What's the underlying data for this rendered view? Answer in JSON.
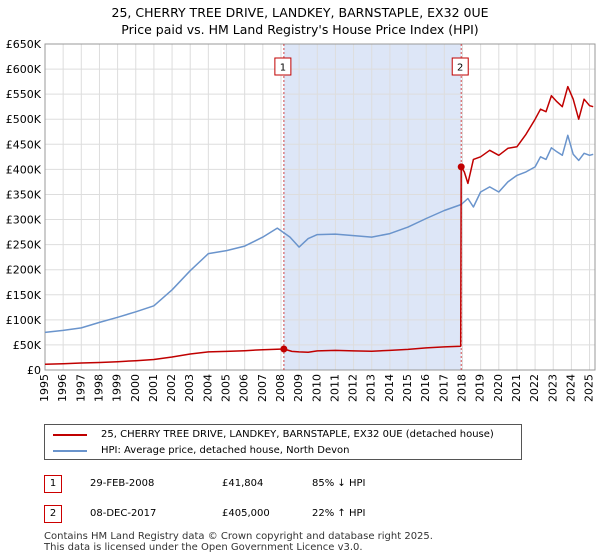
{
  "title_line1": "25, CHERRY TREE DRIVE, LANDKEY, BARNSTAPLE, EX32 0UE",
  "title_line2": "Price paid vs. HM Land Registry's House Price Index (HPI)",
  "colors": {
    "property": "#c00000",
    "hpi": "#6a94cc",
    "shade": "#dde6f7",
    "grid": "#dddddd"
  },
  "chart_data": {
    "type": "line",
    "title": "25, CHERRY TREE DRIVE, LANDKEY, BARNSTAPLE, EX32 0UE — Price paid vs. HM Land Registry's House Price Index (HPI)",
    "xlabel": "",
    "ylabel": "",
    "xlim": [
      1995,
      2025.3
    ],
    "ylim": [
      0,
      650000
    ],
    "y_ticks": [
      0,
      50000,
      100000,
      150000,
      200000,
      250000,
      300000,
      350000,
      400000,
      450000,
      500000,
      550000,
      600000,
      650000
    ],
    "y_tick_labels": [
      "£0",
      "£50K",
      "£100K",
      "£150K",
      "£200K",
      "£250K",
      "£300K",
      "£350K",
      "£400K",
      "£450K",
      "£500K",
      "£550K",
      "£600K",
      "£650K"
    ],
    "x_ticks": [
      1995,
      1996,
      1997,
      1998,
      1999,
      2000,
      2001,
      2002,
      2003,
      2004,
      2005,
      2006,
      2007,
      2008,
      2009,
      2010,
      2011,
      2012,
      2013,
      2014,
      2015,
      2016,
      2017,
      2018,
      2019,
      2020,
      2021,
      2022,
      2023,
      2024,
      2025
    ],
    "x_tick_labels": [
      "1995",
      "1996",
      "1997",
      "1998",
      "1999",
      "2000",
      "2001",
      "2002",
      "2003",
      "2004",
      "2005",
      "2006",
      "2007",
      "2008",
      "2009",
      "2010",
      "2011",
      "2012",
      "2013",
      "2014",
      "2015",
      "2016",
      "2017",
      "2018",
      "2019",
      "2020",
      "2021",
      "2022",
      "2023",
      "2024",
      "2025"
    ],
    "grid": true,
    "shaded_range": [
      2008.16,
      2017.93
    ],
    "series": [
      {
        "name": "25, CHERRY TREE DRIVE, LANDKEY, BARNSTAPLE, EX32 0UE (detached house)",
        "x": [
          1995,
          1996,
          1997,
          1998,
          1999,
          2000,
          2001,
          2002,
          2003,
          2004,
          2005,
          2006,
          2007,
          2008.16,
          2008.6,
          2009,
          2009.5,
          2010,
          2011,
          2012,
          2013,
          2014,
          2015,
          2016,
          2017,
          2017.9,
          2017.93,
          2018.1,
          2018.3,
          2018.6,
          2019,
          2019.5,
          2020,
          2020.5,
          2021,
          2021.5,
          2022,
          2022.3,
          2022.6,
          2022.9,
          2023.2,
          2023.5,
          2023.8,
          2024.1,
          2024.4,
          2024.7,
          2025,
          2025.2
        ],
        "values": [
          11500,
          12500,
          14000,
          15000,
          16500,
          18500,
          21000,
          26000,
          32000,
          36000,
          37000,
          38500,
          40500,
          41804,
          37000,
          36000,
          35500,
          38000,
          39000,
          38000,
          37500,
          39000,
          41000,
          44000,
          46000,
          47500,
          405000,
          395000,
          372000,
          420000,
          425000,
          438000,
          428000,
          442000,
          445000,
          470000,
          500000,
          520000,
          515000,
          547000,
          535000,
          525000,
          565000,
          540000,
          500000,
          540000,
          527000,
          525000
        ]
      },
      {
        "name": "HPI: Average price, detached house, North Devon",
        "x": [
          1995,
          1996,
          1997,
          1998,
          1999,
          2000,
          2001,
          2002,
          2003,
          2004,
          2005,
          2006,
          2007,
          2007.8,
          2008.5,
          2009,
          2009.5,
          2010,
          2011,
          2012,
          2013,
          2014,
          2015,
          2016,
          2017,
          2017.93,
          2018.3,
          2018.6,
          2019,
          2019.5,
          2020,
          2020.5,
          2021,
          2021.5,
          2022,
          2022.3,
          2022.6,
          2022.9,
          2023.2,
          2023.5,
          2023.8,
          2024.1,
          2024.4,
          2024.7,
          2025,
          2025.2
        ],
        "values": [
          75000,
          79000,
          84000,
          95000,
          105000,
          116000,
          128000,
          160000,
          198000,
          232000,
          238000,
          247000,
          265000,
          283000,
          265000,
          245000,
          262000,
          270000,
          271000,
          268000,
          265000,
          272000,
          285000,
          302000,
          318000,
          330000,
          342000,
          325000,
          355000,
          365000,
          355000,
          375000,
          388000,
          395000,
          405000,
          425000,
          420000,
          443000,
          435000,
          428000,
          468000,
          430000,
          418000,
          432000,
          428000,
          430000
        ]
      }
    ],
    "annotations": [
      {
        "label": "1",
        "x": 2008.16,
        "value": 41804
      },
      {
        "label": "2",
        "x": 2017.93,
        "value": 405000
      }
    ],
    "legend": "bottom"
  },
  "legend": {
    "property_label": "25, CHERRY TREE DRIVE, LANDKEY, BARNSTAPLE, EX32 0UE (detached house)",
    "hpi_label": "HPI: Average price, detached house, North Devon"
  },
  "sales": [
    {
      "num": "1",
      "date": "29-FEB-2008",
      "price": "£41,804",
      "hpi": "85% ↓ HPI"
    },
    {
      "num": "2",
      "date": "08-DEC-2017",
      "price": "£405,000",
      "hpi": "22% ↑ HPI"
    }
  ],
  "footer": {
    "line1": "Contains HM Land Registry data © Crown copyright and database right 2025.",
    "line2": "This data is licensed under the Open Government Licence v3.0."
  }
}
